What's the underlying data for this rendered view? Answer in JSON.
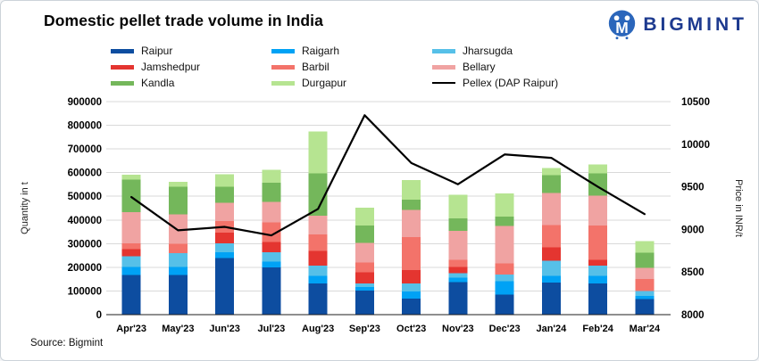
{
  "header": {
    "title": "Domestic pellet trade volume in India",
    "brand": "BIGMINT"
  },
  "footer": {
    "source": "Source: Bigmint"
  },
  "legend": {
    "columns": [
      {
        "x": 123,
        "items": [
          {
            "label": "Raipur",
            "swatch": "#0d4da0"
          },
          {
            "label": "Jamshedpur",
            "swatch": "#e43530"
          },
          {
            "label": "Kandla",
            "swatch": "#74b75b"
          }
        ]
      },
      {
        "x": 303,
        "items": [
          {
            "label": "Raigarh",
            "swatch": "#00a2f5"
          },
          {
            "label": "Barbil",
            "swatch": "#f3736a"
          },
          {
            "label": "Durgapur",
            "swatch": "#b6e491"
          }
        ]
      },
      {
        "x": 483,
        "items": [
          {
            "label": "Jharsugda",
            "swatch": "#56c0e8"
          },
          {
            "label": "Bellary",
            "swatch": "#f0a3a2"
          },
          {
            "label": "Pellex (DAP Raipur)",
            "swatch": "line"
          }
        ]
      }
    ]
  },
  "chart_data": {
    "type": "bar",
    "subtype": "stacked-bars-with-line",
    "title": "Domestic pellet trade volume in India",
    "categories": [
      "Apr'23",
      "May'23",
      "Jun'23",
      "Jul'23",
      "Aug'23",
      "Sep'23",
      "Oct'23",
      "Nov'23",
      "Dec'23",
      "Jan'24",
      "Feb'24",
      "Mar'24"
    ],
    "series": [
      {
        "name": "Raipur",
        "color": "#0d4da0",
        "values": [
          167000,
          167000,
          239000,
          199000,
          132000,
          101000,
          67000,
          138000,
          84000,
          136000,
          132000,
          65000
        ]
      },
      {
        "name": "Raigarh",
        "color": "#00a2f5",
        "values": [
          34000,
          34000,
          25000,
          25000,
          31000,
          15000,
          31000,
          19000,
          57000,
          28000,
          31000,
          15000
        ]
      },
      {
        "name": "Jharsugda",
        "color": "#56c0e8",
        "values": [
          46000,
          59000,
          38000,
          40000,
          44000,
          16000,
          34000,
          19000,
          28000,
          63000,
          44000,
          20000
        ]
      },
      {
        "name": "Jamshedpur",
        "color": "#e43530",
        "values": [
          29000,
          0,
          44000,
          42000,
          63000,
          47000,
          57000,
          25000,
          0,
          57000,
          25000,
          0
        ]
      },
      {
        "name": "Barbil",
        "color": "#f3736a",
        "values": [
          25000,
          40000,
          50000,
          84000,
          69000,
          42000,
          138000,
          31000,
          48000,
          94000,
          145000,
          50000
        ]
      },
      {
        "name": "Bellary",
        "color": "#f0a3a2",
        "values": [
          132000,
          123000,
          76000,
          86000,
          79000,
          82000,
          116000,
          122000,
          158000,
          136000,
          126000,
          48000
        ]
      },
      {
        "name": "Kandla",
        "color": "#74b75b",
        "values": [
          138000,
          117000,
          69000,
          82000,
          179000,
          73000,
          42000,
          52000,
          40000,
          75000,
          94000,
          63000
        ]
      },
      {
        "name": "Durgapur",
        "color": "#b6e491",
        "values": [
          21000,
          21000,
          53000,
          53000,
          177000,
          75000,
          84000,
          101000,
          98000,
          30000,
          38000,
          50000
        ]
      }
    ],
    "line_series": {
      "name": "Pellex (DAP Raipur)",
      "color": "#000000",
      "axis": "right",
      "values": [
        9380,
        8990,
        9030,
        8930,
        9240,
        10340,
        9780,
        9530,
        9880,
        9840,
        9500,
        9180
      ]
    },
    "left_axis": {
      "label": "Quantity in t",
      "min": 0,
      "max": 900000,
      "step": 100000
    },
    "right_axis": {
      "label": "Price in INR/t",
      "min": 8000,
      "max": 10500,
      "step": 500
    },
    "grid": true,
    "legend_position": "top",
    "colors": {
      "gridline": "#d9d9d9",
      "axis_line": "#1f1f1f",
      "tick_text": "#000000"
    }
  },
  "brand_colors": {
    "icon": "#2b66bb",
    "wordmark": "#1d3a8f"
  }
}
